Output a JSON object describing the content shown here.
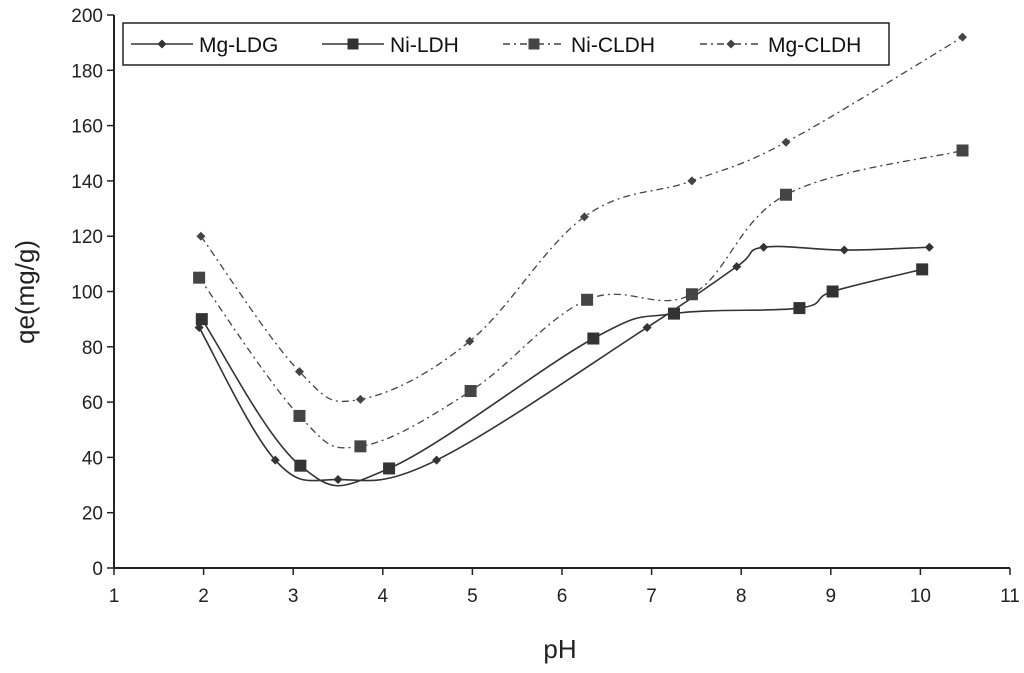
{
  "chart_data": {
    "type": "line",
    "title": "",
    "xlabel": "pH",
    "ylabel": "qe(mg/g)",
    "xlim": [
      1,
      11
    ],
    "ylim": [
      0,
      200
    ],
    "x_ticks": [
      1,
      2,
      3,
      4,
      5,
      6,
      7,
      8,
      9,
      10,
      11
    ],
    "y_ticks": [
      0,
      20,
      40,
      60,
      80,
      100,
      120,
      140,
      160,
      180,
      200
    ],
    "grid": false,
    "legend_position": "top",
    "series": [
      {
        "name": "Mg-LDG",
        "marker": "diamond",
        "line_style": "solid",
        "color": "#333333",
        "points": [
          [
            1.95,
            87
          ],
          [
            2.8,
            39
          ],
          [
            3.5,
            32
          ],
          [
            4.6,
            39
          ],
          [
            6.95,
            87
          ],
          [
            7.95,
            109
          ],
          [
            8.25,
            116
          ],
          [
            9.15,
            115
          ],
          [
            10.1,
            116
          ]
        ]
      },
      {
        "name": "Ni-LDH",
        "marker": "square",
        "line_style": "solid",
        "color": "#333333",
        "points": [
          [
            1.98,
            90
          ],
          [
            3.08,
            37
          ],
          [
            4.07,
            36
          ],
          [
            6.35,
            83
          ],
          [
            7.25,
            92
          ],
          [
            8.65,
            94
          ],
          [
            9.02,
            100
          ],
          [
            10.02,
            108
          ]
        ]
      },
      {
        "name": "Ni-CLDH",
        "marker": "square",
        "line_style": "dash-dot",
        "color": "#444444",
        "points": [
          [
            1.95,
            105
          ],
          [
            3.07,
            55
          ],
          [
            3.75,
            44
          ],
          [
            4.98,
            64
          ],
          [
            6.28,
            97
          ],
          [
            7.45,
            99
          ],
          [
            8.5,
            135
          ],
          [
            10.47,
            151
          ]
        ]
      },
      {
        "name": "Mg-CLDH",
        "marker": "diamond",
        "line_style": "dash-dot",
        "color": "#444444",
        "points": [
          [
            1.97,
            120
          ],
          [
            3.07,
            71
          ],
          [
            3.75,
            61
          ],
          [
            4.97,
            82
          ],
          [
            6.25,
            127
          ],
          [
            7.45,
            140
          ],
          [
            8.5,
            154
          ],
          [
            10.47,
            192
          ]
        ]
      }
    ]
  }
}
